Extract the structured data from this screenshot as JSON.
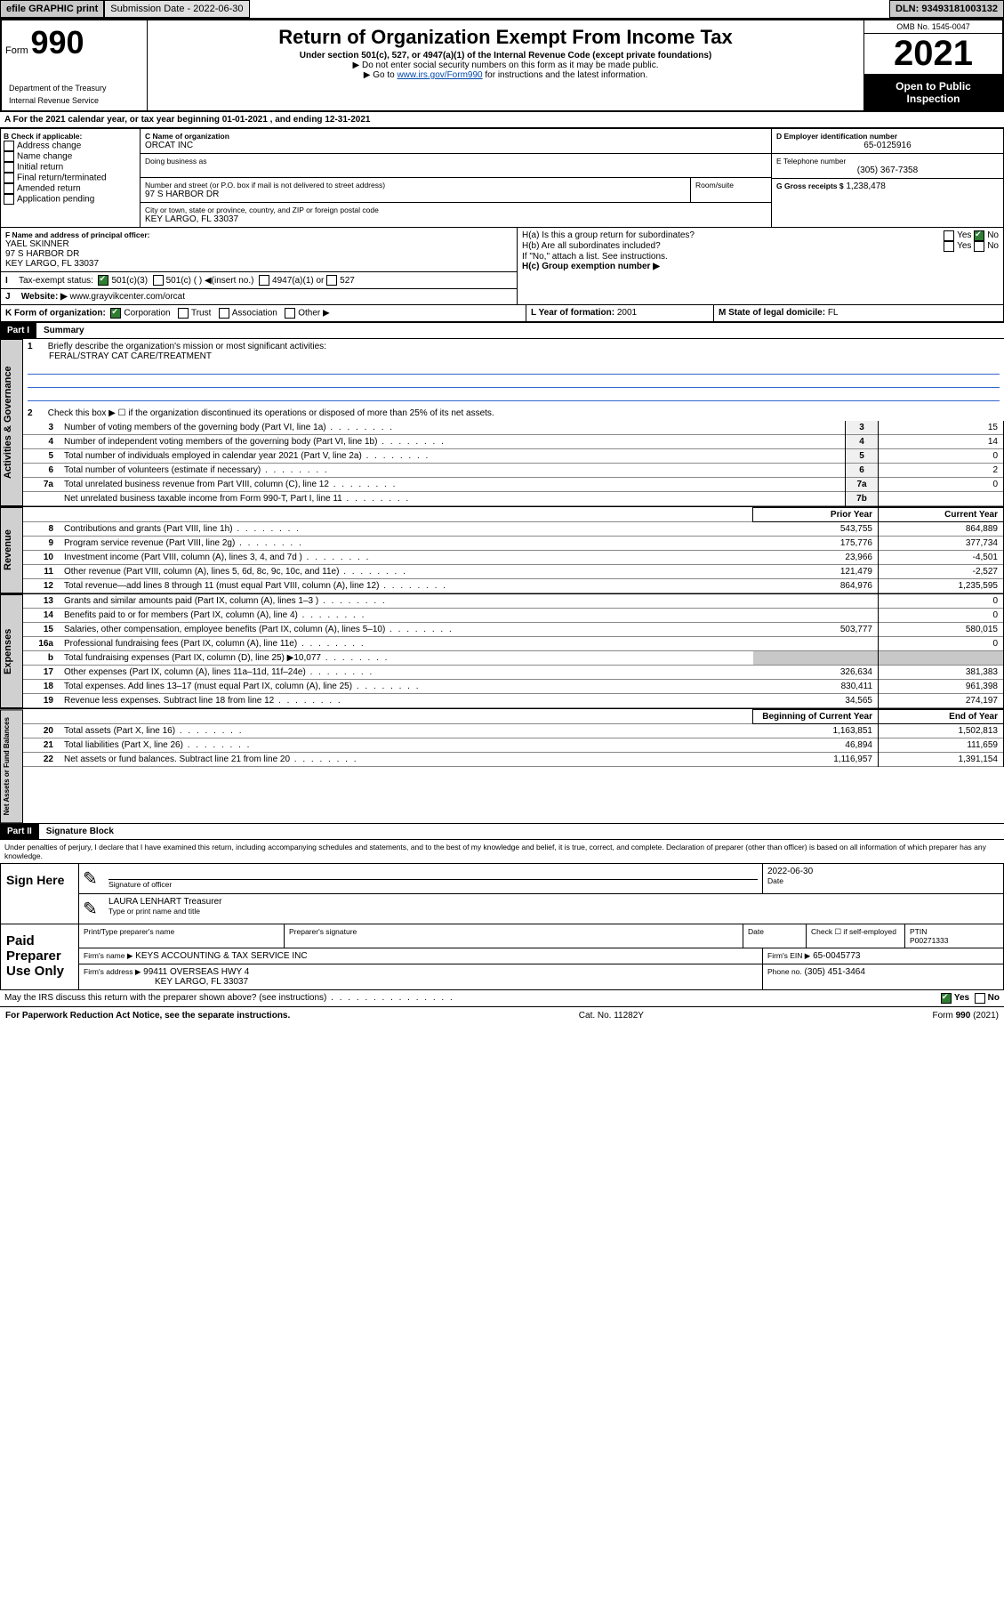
{
  "topbar": {
    "efile": "efile GRAPHIC print",
    "submission_label": "Submission Date - 2022-06-30",
    "dln": "DLN: 93493181003132"
  },
  "header": {
    "form_prefix": "Form",
    "form_number": "990",
    "dept": "Department of the Treasury",
    "irs": "Internal Revenue Service",
    "title": "Return of Organization Exempt From Income Tax",
    "subtitle": "Under section 501(c), 527, or 4947(a)(1) of the Internal Revenue Code (except private foundations)",
    "note1": "▶ Do not enter social security numbers on this form as it may be made public.",
    "note2_pre": "▶ Go to ",
    "note2_link": "www.irs.gov/Form990",
    "note2_post": " for instructions and the latest information.",
    "omb": "OMB No. 1545-0047",
    "year": "2021",
    "open": "Open to Public Inspection"
  },
  "periodA": "A For the 2021 calendar year, or tax year beginning 01-01-2021   , and ending 12-31-2021",
  "boxB": {
    "label": "B Check if applicable:",
    "items": [
      "Address change",
      "Name change",
      "Initial return",
      "Final return/terminated",
      "Amended return",
      "Application pending"
    ]
  },
  "boxC": {
    "label": "C Name of organization",
    "name": "ORCAT INC",
    "dba_label": "Doing business as",
    "addr_label": "Number and street (or P.O. box if mail is not delivered to street address)",
    "room_label": "Room/suite",
    "addr": "97 S HARBOR DR",
    "city_label": "City or town, state or province, country, and ZIP or foreign postal code",
    "city": "KEY LARGO, FL  33037"
  },
  "boxD": {
    "label": "D Employer identification number",
    "value": "65-0125916"
  },
  "boxE": {
    "label": "E Telephone number",
    "value": "(305) 367-7358"
  },
  "boxG": {
    "label": "G Gross receipts $",
    "value": "1,238,478"
  },
  "boxF": {
    "label": "F Name and address of principal officer:",
    "name": "YAEL SKINNER",
    "addr1": "97 S HARBOR DR",
    "addr2": "KEY LARGO, FL  33037"
  },
  "boxH": {
    "a_label": "H(a)  Is this a group return for subordinates?",
    "b_label": "H(b)  Are all subordinates included?",
    "note": "If \"No,\" attach a list. See instructions.",
    "c_label": "H(c)  Group exemption number ▶",
    "yes": "Yes",
    "no": "No"
  },
  "boxI": {
    "label": "Tax-exempt status:",
    "c3": "501(c)(3)",
    "c": "501(c) (  ) ◀(insert no.)",
    "a1": "4947(a)(1) or",
    "527": "527"
  },
  "boxJ": {
    "label": "Website: ▶",
    "value": "www.grayvikcenter.com/orcat"
  },
  "boxK": {
    "label": "K Form of organization:",
    "corp": "Corporation",
    "trust": "Trust",
    "assoc": "Association",
    "other": "Other ▶"
  },
  "boxL": {
    "label": "L Year of formation:",
    "value": "2001"
  },
  "boxM": {
    "label": "M State of legal domicile:",
    "value": "FL"
  },
  "partI": {
    "tag": "Part I",
    "title": "Summary",
    "line1_label": "Briefly describe the organization's mission or most significant activities:",
    "mission": "FERAL/STRAY CAT CARE/TREATMENT",
    "line2": "Check this box ▶ ☐  if the organization discontinued its operations or disposed of more than 25% of its net assets."
  },
  "sidebars": {
    "gov": "Activities & Governance",
    "rev": "Revenue",
    "exp": "Expenses",
    "net": "Net Assets or Fund Balances"
  },
  "table_headers": {
    "prior": "Prior Year",
    "current": "Current Year",
    "begin": "Beginning of Current Year",
    "end": "End of Year"
  },
  "gov_lines": [
    {
      "n": "3",
      "d": "Number of voting members of the governing body (Part VI, line 1a)",
      "r": "3",
      "v": "15"
    },
    {
      "n": "4",
      "d": "Number of independent voting members of the governing body (Part VI, line 1b)",
      "r": "4",
      "v": "14"
    },
    {
      "n": "5",
      "d": "Total number of individuals employed in calendar year 2021 (Part V, line 2a)",
      "r": "5",
      "v": "0"
    },
    {
      "n": "6",
      "d": "Total number of volunteers (estimate if necessary)",
      "r": "6",
      "v": "2"
    },
    {
      "n": "7a",
      "d": "Total unrelated business revenue from Part VIII, column (C), line 12",
      "r": "7a",
      "v": "0"
    },
    {
      "n": "",
      "d": "Net unrelated business taxable income from Form 990-T, Part I, line 11",
      "r": "7b",
      "v": ""
    }
  ],
  "rev_lines": [
    {
      "n": "8",
      "d": "Contributions and grants (Part VIII, line 1h)",
      "p": "543,755",
      "c": "864,889"
    },
    {
      "n": "9",
      "d": "Program service revenue (Part VIII, line 2g)",
      "p": "175,776",
      "c": "377,734"
    },
    {
      "n": "10",
      "d": "Investment income (Part VIII, column (A), lines 3, 4, and 7d )",
      "p": "23,966",
      "c": "-4,501"
    },
    {
      "n": "11",
      "d": "Other revenue (Part VIII, column (A), lines 5, 6d, 8c, 9c, 10c, and 11e)",
      "p": "121,479",
      "c": "-2,527"
    },
    {
      "n": "12",
      "d": "Total revenue—add lines 8 through 11 (must equal Part VIII, column (A), line 12)",
      "p": "864,976",
      "c": "1,235,595"
    }
  ],
  "exp_lines": [
    {
      "n": "13",
      "d": "Grants and similar amounts paid (Part IX, column (A), lines 1–3 )",
      "p": "",
      "c": "0"
    },
    {
      "n": "14",
      "d": "Benefits paid to or for members (Part IX, column (A), line 4)",
      "p": "",
      "c": "0"
    },
    {
      "n": "15",
      "d": "Salaries, other compensation, employee benefits (Part IX, column (A), lines 5–10)",
      "p": "503,777",
      "c": "580,015"
    },
    {
      "n": "16a",
      "d": "Professional fundraising fees (Part IX, column (A), line 11e)",
      "p": "",
      "c": "0"
    },
    {
      "n": "b",
      "d": "Total fundraising expenses (Part IX, column (D), line 25) ▶10,077",
      "p": "shade",
      "c": "shade"
    },
    {
      "n": "17",
      "d": "Other expenses (Part IX, column (A), lines 11a–11d, 11f–24e)",
      "p": "326,634",
      "c": "381,383"
    },
    {
      "n": "18",
      "d": "Total expenses. Add lines 13–17 (must equal Part IX, column (A), line 25)",
      "p": "830,411",
      "c": "961,398"
    },
    {
      "n": "19",
      "d": "Revenue less expenses. Subtract line 18 from line 12",
      "p": "34,565",
      "c": "274,197"
    }
  ],
  "net_lines": [
    {
      "n": "20",
      "d": "Total assets (Part X, line 16)",
      "p": "1,163,851",
      "c": "1,502,813"
    },
    {
      "n": "21",
      "d": "Total liabilities (Part X, line 26)",
      "p": "46,894",
      "c": "111,659"
    },
    {
      "n": "22",
      "d": "Net assets or fund balances. Subtract line 21 from line 20",
      "p": "1,116,957",
      "c": "1,391,154"
    }
  ],
  "partII": {
    "tag": "Part II",
    "title": "Signature Block",
    "decl": "Under penalties of perjury, I declare that I have examined this return, including accompanying schedules and statements, and to the best of my knowledge and belief, it is true, correct, and complete. Declaration of preparer (other than officer) is based on all information of which preparer has any knowledge."
  },
  "sign": {
    "here": "Sign Here",
    "sig_officer": "Signature of officer",
    "date": "Date",
    "date_val": "2022-06-30",
    "name": "LAURA LENHART Treasurer",
    "type_name": "Type or print name and title"
  },
  "paid": {
    "label": "Paid Preparer Use Only",
    "print_name": "Print/Type preparer's name",
    "prep_sig": "Preparer's signature",
    "date": "Date",
    "check": "Check ☐ if self-employed",
    "ptin_label": "PTIN",
    "ptin": "P00271333",
    "firm_name_label": "Firm's name    ▶",
    "firm_name": "KEYS ACCOUNTING & TAX SERVICE INC",
    "firm_ein_label": "Firm's EIN ▶",
    "firm_ein": "65-0045773",
    "firm_addr_label": "Firm's address ▶",
    "firm_addr1": "99411 OVERSEAS HWY 4",
    "firm_addr2": "KEY LARGO, FL  33037",
    "phone_label": "Phone no.",
    "phone": "(305) 451-3464"
  },
  "bottom": {
    "discuss": "May the IRS discuss this return with the preparer shown above? (see instructions)",
    "yes": "Yes",
    "no": "No",
    "paperwork": "For Paperwork Reduction Act Notice, see the separate instructions.",
    "cat": "Cat. No. 11282Y",
    "form": "Form 990 (2021)"
  }
}
